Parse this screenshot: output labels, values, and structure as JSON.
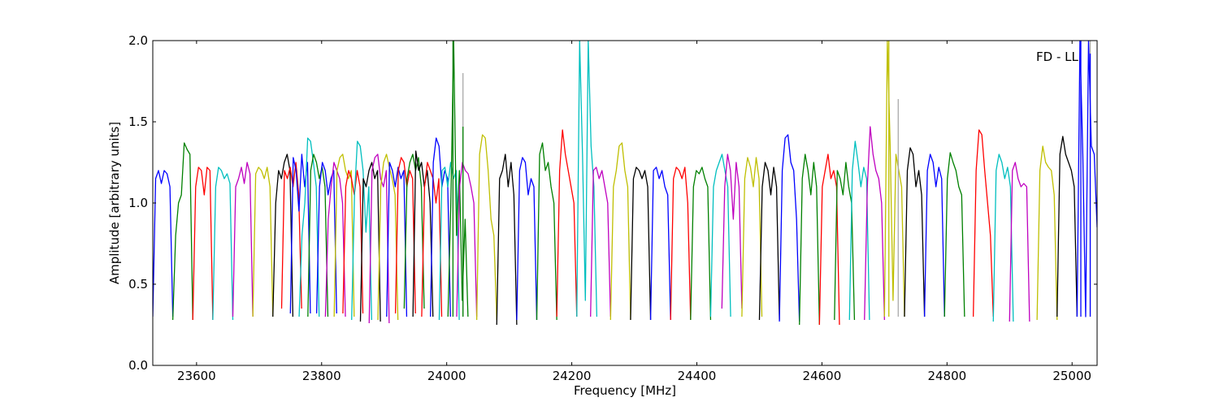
{
  "chart_data": {
    "type": "line",
    "title": "",
    "annotation": "FD - LL",
    "xlabel": "Frequency [MHz]",
    "ylabel": "Amplitude [arbitrary units]",
    "xlim": [
      23530,
      25040
    ],
    "ylim": [
      0.0,
      2.0
    ],
    "x_ticks": [
      23600,
      23800,
      24000,
      24200,
      24400,
      24600,
      24800,
      25000
    ],
    "x_tick_labels": [
      "23600",
      "23800",
      "24000",
      "24200",
      "24400",
      "24600",
      "24800",
      "25000"
    ],
    "y_ticks": [
      0.0,
      0.5,
      1.0,
      1.5,
      2.0
    ],
    "y_tick_labels": [
      "0.0",
      "0.5",
      "1.0",
      "1.5",
      "2.0"
    ],
    "grid": false,
    "legend": "none",
    "band_width_mhz": 32,
    "band_spacing_mhz": 14,
    "band_start_mhz": 23530,
    "color_cycle": [
      "#0000ff",
      "#008000",
      "#ff0000",
      "#00bfbf",
      "#bf00bf",
      "#bfbf00",
      "#000000"
    ],
    "series": [
      {
        "color": "#0000ff",
        "x_start": 23530,
        "x_end": 23562,
        "values": [
          0.3,
          1.15,
          1.2,
          1.12,
          1.2,
          1.18,
          1.1,
          0.3
        ]
      },
      {
        "color": "#008000",
        "x_start": 23562,
        "x_end": 23594,
        "values": [
          0.28,
          0.8,
          1.0,
          1.05,
          1.37,
          1.33,
          1.3,
          0.28
        ]
      },
      {
        "color": "#ff0000",
        "x_start": 23594,
        "x_end": 23626,
        "values": [
          0.28,
          1.1,
          1.22,
          1.2,
          1.05,
          1.22,
          1.2,
          0.28
        ]
      },
      {
        "color": "#00bfbf",
        "x_start": 23626,
        "x_end": 23658,
        "values": [
          0.28,
          1.1,
          1.22,
          1.2,
          1.15,
          1.18,
          1.12,
          0.28
        ]
      },
      {
        "color": "#bf00bf",
        "x_start": 23658,
        "x_end": 23690,
        "values": [
          0.3,
          1.1,
          1.15,
          1.22,
          1.12,
          1.25,
          1.18,
          0.3
        ]
      },
      {
        "color": "#bfbf00",
        "x_start": 23690,
        "x_end": 23722,
        "values": [
          0.3,
          1.18,
          1.22,
          1.2,
          1.15,
          1.22,
          1.1,
          0.3
        ]
      },
      {
        "color": "#000000",
        "x_start": 23722,
        "x_end": 23754,
        "values": [
          0.3,
          1.0,
          1.2,
          1.15,
          1.25,
          1.3,
          1.2,
          0.3
        ]
      },
      {
        "color": "#ff0000",
        "x_start": 23736,
        "x_end": 23768,
        "values": [
          0.35,
          1.2,
          1.15,
          1.22,
          1.1,
          1.25,
          1.05,
          0.35
        ]
      },
      {
        "color": "#0000ff",
        "x_start": 23750,
        "x_end": 23782,
        "values": [
          0.32,
          1.28,
          1.2,
          0.95,
          1.3,
          1.1,
          1.25,
          0.32
        ]
      },
      {
        "color": "#00bfbf",
        "x_start": 23764,
        "x_end": 23796,
        "values": [
          0.3,
          0.8,
          1.0,
          1.4,
          1.38,
          1.25,
          1.1,
          0.3
        ]
      },
      {
        "color": "#008000",
        "x_start": 23778,
        "x_end": 23810,
        "values": [
          0.3,
          1.2,
          1.3,
          1.25,
          1.15,
          1.22,
          1.1,
          0.3
        ]
      },
      {
        "color": "#0000ff",
        "x_start": 23792,
        "x_end": 23824,
        "values": [
          0.32,
          1.1,
          1.25,
          1.2,
          1.05,
          1.15,
          1.2,
          0.32
        ]
      },
      {
        "color": "#bf00bf",
        "x_start": 23806,
        "x_end": 23838,
        "values": [
          0.3,
          0.9,
          1.1,
          1.25,
          1.2,
          1.15,
          1.0,
          0.3
        ]
      },
      {
        "color": "#bfbf00",
        "x_start": 23820,
        "x_end": 23852,
        "values": [
          0.3,
          1.2,
          1.28,
          1.3,
          1.2,
          1.15,
          1.2,
          0.3
        ]
      },
      {
        "color": "#ff0000",
        "x_start": 23834,
        "x_end": 23866,
        "values": [
          0.32,
          1.1,
          1.2,
          1.15,
          1.05,
          1.2,
          1.1,
          0.32
        ]
      },
      {
        "color": "#00bfbf",
        "x_start": 23848,
        "x_end": 23880,
        "values": [
          0.28,
          1.05,
          1.38,
          1.35,
          1.2,
          0.82,
          1.1,
          0.28
        ]
      },
      {
        "color": "#000000",
        "x_start": 23862,
        "x_end": 23894,
        "values": [
          0.27,
          1.15,
          1.1,
          1.2,
          1.25,
          1.15,
          1.2,
          0.27
        ]
      },
      {
        "color": "#bf00bf",
        "x_start": 23876,
        "x_end": 23908,
        "values": [
          0.26,
          1.2,
          1.28,
          1.3,
          1.15,
          1.1,
          1.2,
          0.26
        ]
      },
      {
        "color": "#bfbf00",
        "x_start": 23890,
        "x_end": 23922,
        "values": [
          0.28,
          1.1,
          1.25,
          1.3,
          1.22,
          1.15,
          1.05,
          0.28
        ]
      },
      {
        "color": "#0000ff",
        "x_start": 23904,
        "x_end": 23936,
        "values": [
          0.3,
          1.25,
          1.2,
          1.1,
          1.22,
          1.15,
          1.2,
          0.3
        ]
      },
      {
        "color": "#ff0000",
        "x_start": 23918,
        "x_end": 23950,
        "values": [
          0.32,
          1.2,
          1.28,
          1.25,
          1.1,
          1.2,
          1.15,
          0.32
        ]
      },
      {
        "color": "#008000",
        "x_start": 23932,
        "x_end": 23964,
        "values": [
          0.35,
          1.15,
          1.25,
          1.3,
          1.2,
          1.28,
          1.1,
          0.35
        ]
      },
      {
        "color": "#000000",
        "x_start": 23946,
        "x_end": 23978,
        "values": [
          0.3,
          1.32,
          1.2,
          1.25,
          1.1,
          1.2,
          1.0,
          0.3
        ]
      },
      {
        "color": "#ff0000",
        "x_start": 23960,
        "x_end": 23992,
        "values": [
          0.3,
          1.1,
          1.25,
          1.2,
          1.15,
          1.0,
          1.15,
          0.3
        ]
      },
      {
        "color": "#0000ff",
        "x_start": 23974,
        "x_end": 24006,
        "values": [
          0.3,
          1.25,
          1.4,
          1.35,
          1.1,
          1.2,
          1.15,
          0.3
        ]
      },
      {
        "color": "#00bfbf",
        "x_start": 23988,
        "x_end": 24020,
        "values": [
          0.28,
          1.2,
          1.22,
          1.1,
          1.25,
          1.15,
          1.2,
          0.28
        ]
      },
      {
        "color": "#008000",
        "x_start": 24002,
        "x_end": 24034,
        "values": [
          0.3,
          1.0,
          2.0,
          0.8,
          1.2,
          0.4,
          0.9,
          0.3
        ]
      },
      {
        "color": "#bf00bf",
        "x_start": 24016,
        "x_end": 24048,
        "values": [
          0.3,
          1.1,
          1.25,
          1.2,
          1.18,
          1.1,
          1.0,
          0.3
        ]
      },
      {
        "color": "#bfbf00",
        "x_start": 24048,
        "x_end": 24080,
        "values": [
          0.28,
          1.3,
          1.42,
          1.4,
          1.2,
          0.9,
          0.8,
          0.28
        ]
      },
      {
        "color": "#000000",
        "x_start": 24080,
        "x_end": 24112,
        "values": [
          0.25,
          1.15,
          1.2,
          1.3,
          1.1,
          1.25,
          1.05,
          0.25
        ]
      },
      {
        "color": "#0000ff",
        "x_start": 24112,
        "x_end": 24144,
        "values": [
          0.28,
          1.2,
          1.28,
          1.25,
          1.05,
          1.15,
          1.1,
          0.28
        ]
      },
      {
        "color": "#008000",
        "x_start": 24144,
        "x_end": 24176,
        "values": [
          0.28,
          1.3,
          1.37,
          1.2,
          1.25,
          1.1,
          1.0,
          0.28
        ]
      },
      {
        "color": "#ff0000",
        "x_start": 24176,
        "x_end": 24208,
        "values": [
          0.3,
          1.2,
          1.45,
          1.3,
          1.2,
          1.1,
          1.0,
          0.3
        ]
      },
      {
        "color": "#00bfbf",
        "x_start": 24208,
        "x_end": 24240,
        "values": [
          0.3,
          2.0,
          1.3,
          0.4,
          2.0,
          1.35,
          1.1,
          0.3
        ]
      },
      {
        "color": "#bf00bf",
        "x_start": 24230,
        "x_end": 24262,
        "values": [
          0.3,
          1.2,
          1.22,
          1.15,
          1.2,
          1.1,
          1.0,
          0.3
        ]
      },
      {
        "color": "#bfbf00",
        "x_start": 24262,
        "x_end": 24294,
        "values": [
          0.28,
          1.1,
          1.2,
          1.35,
          1.37,
          1.2,
          1.1,
          0.28
        ]
      },
      {
        "color": "#000000",
        "x_start": 24294,
        "x_end": 24326,
        "values": [
          0.28,
          1.15,
          1.22,
          1.2,
          1.15,
          1.2,
          1.1,
          0.28
        ]
      },
      {
        "color": "#0000ff",
        "x_start": 24326,
        "x_end": 24358,
        "values": [
          0.28,
          1.2,
          1.22,
          1.15,
          1.2,
          1.1,
          1.05,
          0.28
        ]
      },
      {
        "color": "#ff0000",
        "x_start": 24358,
        "x_end": 24390,
        "values": [
          0.28,
          1.15,
          1.22,
          1.2,
          1.15,
          1.22,
          1.0,
          0.28
        ]
      },
      {
        "color": "#008000",
        "x_start": 24390,
        "x_end": 24422,
        "values": [
          0.28,
          1.1,
          1.2,
          1.18,
          1.22,
          1.15,
          1.1,
          0.28
        ]
      },
      {
        "color": "#00bfbf",
        "x_start": 24422,
        "x_end": 24454,
        "values": [
          0.3,
          1.1,
          1.2,
          1.25,
          1.3,
          1.2,
          1.1,
          0.3
        ]
      },
      {
        "color": "#bf00bf",
        "x_start": 24440,
        "x_end": 24472,
        "values": [
          0.35,
          1.1,
          1.3,
          1.2,
          0.9,
          1.25,
          1.1,
          0.35
        ]
      },
      {
        "color": "#bfbf00",
        "x_start": 24472,
        "x_end": 24504,
        "values": [
          0.3,
          1.15,
          1.28,
          1.22,
          1.1,
          1.28,
          1.15,
          0.3
        ]
      },
      {
        "color": "#000000",
        "x_start": 24500,
        "x_end": 24532,
        "values": [
          0.28,
          1.1,
          1.25,
          1.2,
          1.05,
          1.22,
          1.1,
          0.28
        ]
      },
      {
        "color": "#0000ff",
        "x_start": 24532,
        "x_end": 24564,
        "values": [
          0.27,
          1.2,
          1.4,
          1.42,
          1.25,
          1.2,
          0.9,
          0.27
        ]
      },
      {
        "color": "#008000",
        "x_start": 24564,
        "x_end": 24596,
        "values": [
          0.25,
          1.15,
          1.3,
          1.2,
          1.05,
          1.25,
          1.1,
          0.25
        ]
      },
      {
        "color": "#ff0000",
        "x_start": 24596,
        "x_end": 24628,
        "values": [
          0.25,
          1.1,
          1.2,
          1.3,
          1.15,
          1.2,
          1.1,
          0.25
        ]
      },
      {
        "color": "#008000",
        "x_start": 24620,
        "x_end": 24652,
        "values": [
          0.28,
          1.2,
          1.15,
          1.05,
          1.25,
          1.1,
          1.0,
          0.28
        ]
      },
      {
        "color": "#00bfbf",
        "x_start": 24644,
        "x_end": 24676,
        "values": [
          0.28,
          1.2,
          1.38,
          1.25,
          1.1,
          1.22,
          1.15,
          0.28
        ]
      },
      {
        "color": "#bf00bf",
        "x_start": 24668,
        "x_end": 24700,
        "values": [
          0.28,
          1.1,
          1.47,
          1.3,
          1.2,
          1.15,
          1.0,
          0.28
        ]
      },
      {
        "color": "#bfbf00",
        "x_start": 24700,
        "x_end": 24732,
        "values": [
          0.3,
          2.0,
          1.35,
          0.4,
          1.3,
          1.2,
          1.1,
          0.3
        ]
      },
      {
        "color": "#000000",
        "x_start": 24732,
        "x_end": 24764,
        "values": [
          0.3,
          1.2,
          1.34,
          1.3,
          1.1,
          1.2,
          1.05,
          0.3
        ]
      },
      {
        "color": "#0000ff",
        "x_start": 24764,
        "x_end": 24796,
        "values": [
          0.3,
          1.2,
          1.3,
          1.25,
          1.1,
          1.22,
          1.15,
          0.3
        ]
      },
      {
        "color": "#008000",
        "x_start": 24796,
        "x_end": 24828,
        "values": [
          0.3,
          1.15,
          1.31,
          1.25,
          1.2,
          1.1,
          1.05,
          0.3
        ]
      },
      {
        "color": "#ff0000",
        "x_start": 24842,
        "x_end": 24874,
        "values": [
          0.3,
          1.2,
          1.45,
          1.42,
          1.2,
          1.0,
          0.8,
          0.3
        ]
      },
      {
        "color": "#00bfbf",
        "x_start": 24874,
        "x_end": 24906,
        "values": [
          0.27,
          1.2,
          1.3,
          1.25,
          1.15,
          1.22,
          1.1,
          0.27
        ]
      },
      {
        "color": "#bf00bf",
        "x_start": 24900,
        "x_end": 24932,
        "values": [
          0.27,
          1.2,
          1.25,
          1.15,
          1.1,
          1.12,
          1.1,
          0.27
        ]
      },
      {
        "color": "#bfbf00",
        "x_start": 24944,
        "x_end": 24976,
        "values": [
          0.28,
          1.2,
          1.35,
          1.25,
          1.22,
          1.2,
          1.05,
          0.28
        ]
      },
      {
        "color": "#000000",
        "x_start": 24976,
        "x_end": 25008,
        "values": [
          0.3,
          1.3,
          1.41,
          1.3,
          1.25,
          1.2,
          1.1,
          0.3
        ]
      },
      {
        "color": "#0000ff",
        "x_start": 25008,
        "x_end": 25040,
        "values": [
          0.3,
          2.0,
          1.3,
          0.3,
          2.0,
          1.35,
          1.3,
          0.85
        ]
      }
    ],
    "spikes": [
      {
        "x": 24010,
        "y": 2.0,
        "color": "#008000"
      },
      {
        "x": 24026,
        "y": 1.8,
        "color": "#aaaaaa"
      },
      {
        "x": 24026,
        "y": 1.47,
        "color": "#008000"
      },
      {
        "x": 24707,
        "y": 2.0,
        "color": "#bfbf00"
      },
      {
        "x": 24722,
        "y": 1.64,
        "color": "#aaaaaa"
      },
      {
        "x": 25014,
        "y": 2.0,
        "color": "#0000ff"
      },
      {
        "x": 25029,
        "y": 2.0,
        "color": "#aaaaaa"
      },
      {
        "x": 25029,
        "y": 1.92,
        "color": "#0000ff"
      }
    ]
  }
}
